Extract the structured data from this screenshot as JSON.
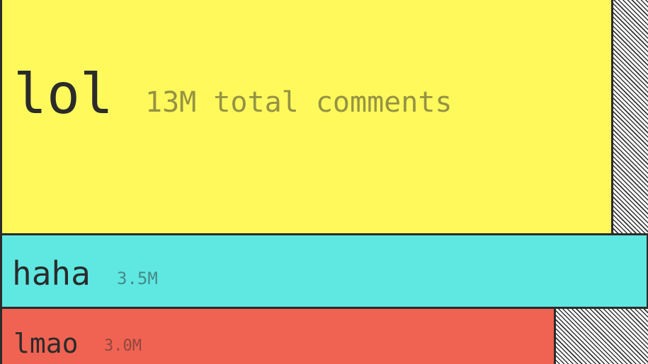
{
  "chart_data": {
    "type": "bar",
    "orientation": "horizontal",
    "categories": [
      "lol",
      "haha",
      "lmao"
    ],
    "values": [
      13000000,
      3500000,
      3000000
    ],
    "value_labels": [
      "13M total comments",
      "3.5M",
      "3.0M"
    ],
    "colors": [
      "#FFF95C",
      "#5FE8E2",
      "#F06352"
    ],
    "title": "",
    "xlabel": "",
    "ylabel": "",
    "grid": false,
    "legend": "none"
  }
}
